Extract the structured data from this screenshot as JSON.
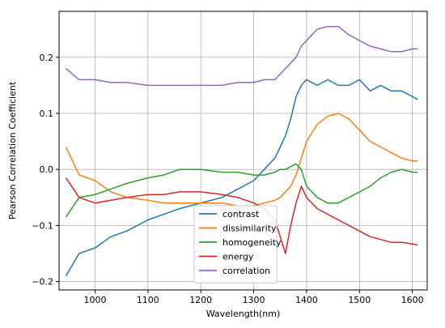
{
  "chart_data": {
    "type": "line",
    "xlabel": "Wavelength(nm)",
    "ylabel": "Pearson Correlation Coefficient",
    "xlim": [
      932,
      1628
    ],
    "ylim": [
      -0.215,
      0.282
    ],
    "x_ticks": [
      1000,
      1100,
      1200,
      1300,
      1400,
      1500,
      1600
    ],
    "y_ticks": [
      -0.2,
      -0.1,
      0.0,
      0.1,
      0.2
    ],
    "x_tick_labels": [
      "1000",
      "1100",
      "1200",
      "1300",
      "1400",
      "1500",
      "1600"
    ],
    "y_tick_labels": [
      "−0.2",
      "−0.1",
      "0.0",
      "0.1",
      "0.2"
    ],
    "grid": true,
    "legend_position": "lower-center",
    "x": [
      945,
      970,
      1000,
      1030,
      1060,
      1100,
      1130,
      1160,
      1200,
      1240,
      1270,
      1300,
      1320,
      1340,
      1350,
      1360,
      1370,
      1380,
      1390,
      1400,
      1420,
      1440,
      1460,
      1480,
      1500,
      1520,
      1540,
      1560,
      1580,
      1600,
      1610
    ],
    "series": [
      {
        "name": "contrast",
        "color": "#1f77b4",
        "values": [
          -0.19,
          -0.15,
          -0.14,
          -0.12,
          -0.11,
          -0.09,
          -0.08,
          -0.07,
          -0.06,
          -0.05,
          -0.035,
          -0.02,
          0.0,
          0.02,
          0.04,
          0.06,
          0.09,
          0.13,
          0.15,
          0.16,
          0.15,
          0.16,
          0.15,
          0.15,
          0.16,
          0.14,
          0.15,
          0.14,
          0.14,
          0.13,
          0.125
        ]
      },
      {
        "name": "dissimilarity",
        "color": "#ff7f0e",
        "values": [
          0.04,
          -0.01,
          -0.02,
          -0.04,
          -0.05,
          -0.055,
          -0.06,
          -0.06,
          -0.06,
          -0.06,
          -0.065,
          -0.065,
          -0.06,
          -0.055,
          -0.05,
          -0.04,
          -0.03,
          -0.01,
          0.02,
          0.05,
          0.08,
          0.095,
          0.1,
          0.09,
          0.07,
          0.05,
          0.04,
          0.03,
          0.02,
          0.015,
          0.015
        ]
      },
      {
        "name": "homogeneity",
        "color": "#2ca02c",
        "values": [
          -0.085,
          -0.05,
          -0.045,
          -0.035,
          -0.025,
          -0.015,
          -0.01,
          0.0,
          0.0,
          -0.005,
          -0.005,
          -0.01,
          -0.01,
          -0.005,
          0.0,
          0.0,
          0.005,
          0.01,
          0.0,
          -0.03,
          -0.05,
          -0.06,
          -0.06,
          -0.05,
          -0.04,
          -0.03,
          -0.015,
          -0.005,
          0.0,
          -0.005,
          -0.005
        ]
      },
      {
        "name": "energy",
        "color": "#d62728",
        "values": [
          -0.015,
          -0.05,
          -0.06,
          -0.055,
          -0.05,
          -0.045,
          -0.045,
          -0.04,
          -0.04,
          -0.045,
          -0.05,
          -0.06,
          -0.07,
          -0.09,
          -0.12,
          -0.15,
          -0.1,
          -0.06,
          -0.03,
          -0.05,
          -0.07,
          -0.08,
          -0.09,
          -0.1,
          -0.11,
          -0.12,
          -0.125,
          -0.13,
          -0.13,
          -0.133,
          -0.135
        ]
      },
      {
        "name": "correlation",
        "color": "#9467bd",
        "values": [
          0.18,
          0.16,
          0.16,
          0.155,
          0.155,
          0.15,
          0.15,
          0.15,
          0.15,
          0.15,
          0.155,
          0.155,
          0.16,
          0.16,
          0.17,
          0.18,
          0.19,
          0.2,
          0.22,
          0.23,
          0.25,
          0.255,
          0.255,
          0.24,
          0.23,
          0.22,
          0.215,
          0.21,
          0.21,
          0.215,
          0.215
        ]
      }
    ]
  }
}
